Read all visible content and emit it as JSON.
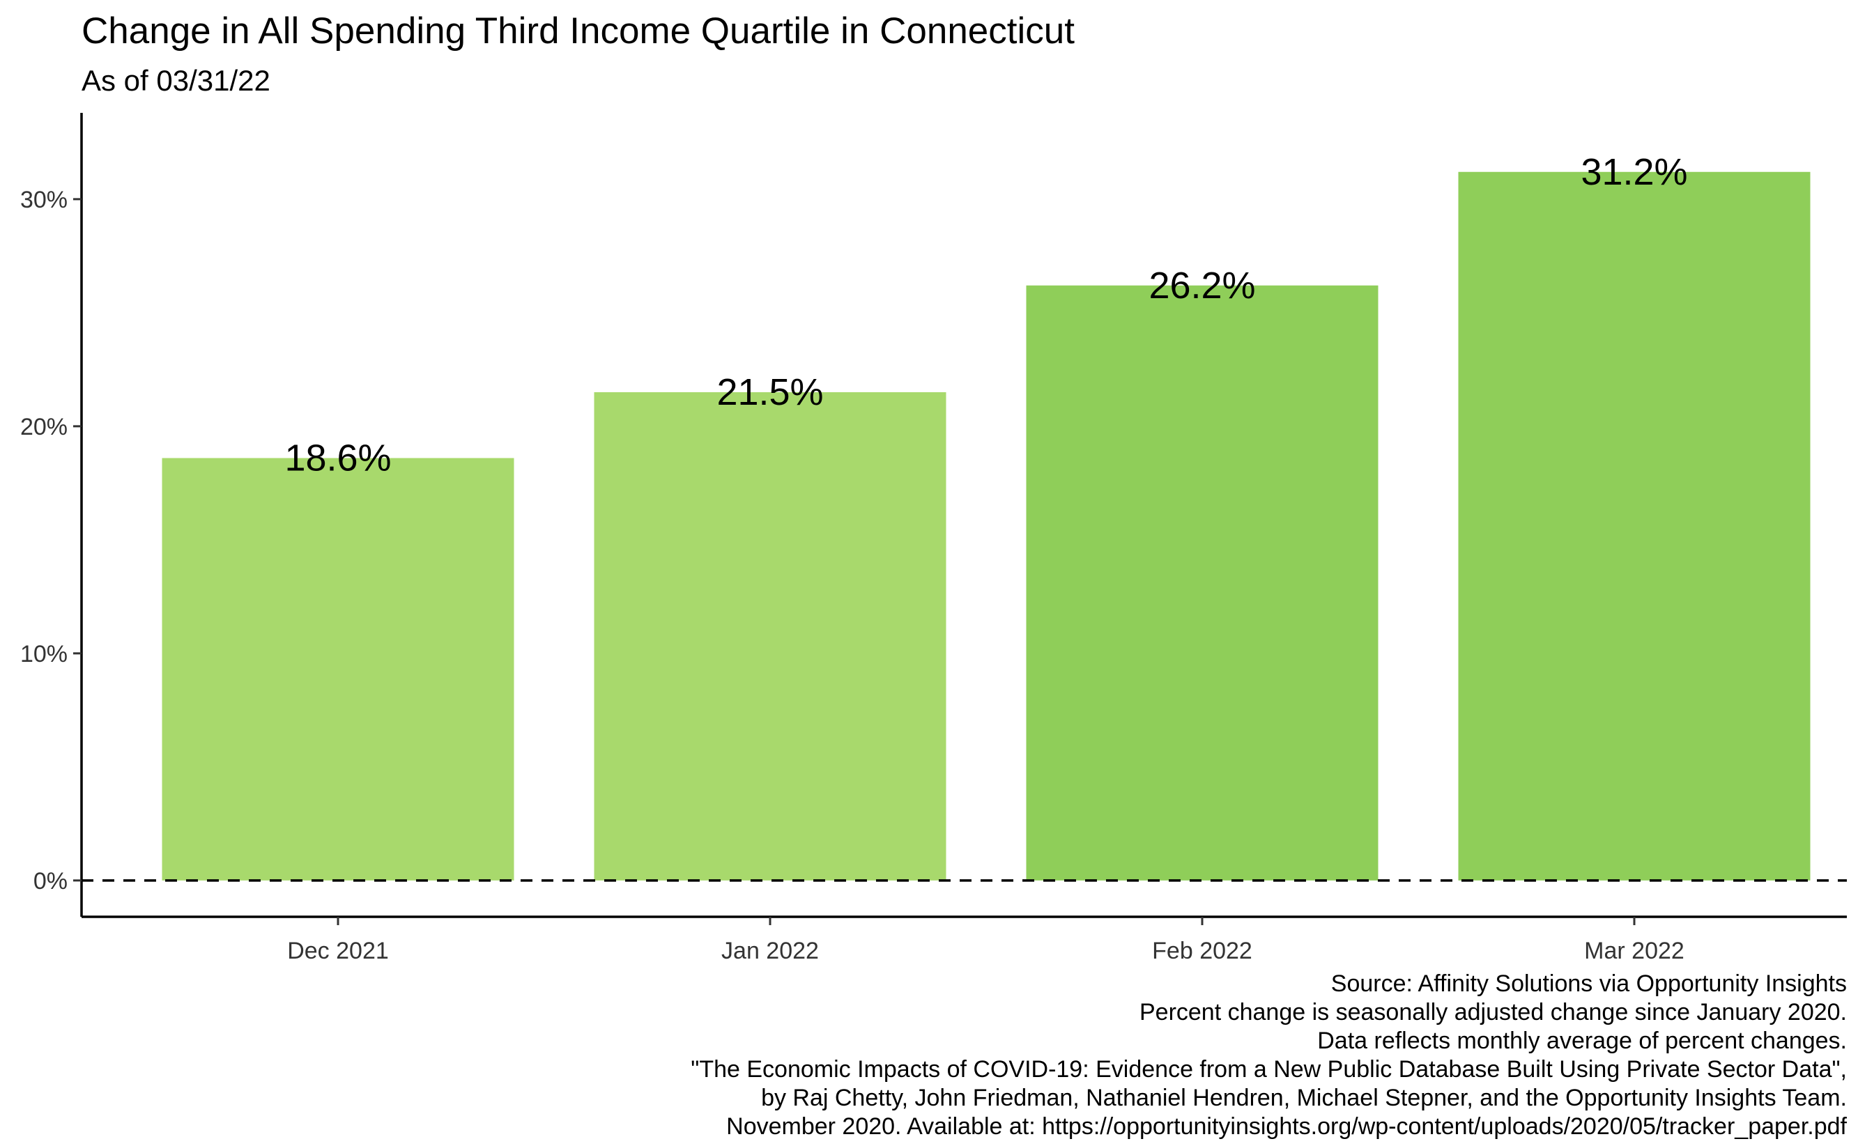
{
  "chart_data": {
    "type": "bar",
    "title": "Change in All Spending Third Income Quartile in Connecticut",
    "subtitle": "As of 03/31/22",
    "xlabel": "",
    "ylabel": "",
    "categories": [
      "Dec 2021",
      "Jan 2022",
      "Feb 2022",
      "Mar 2022"
    ],
    "values": [
      18.6,
      21.5,
      26.2,
      31.2
    ],
    "value_labels": [
      "18.6%",
      "21.5%",
      "26.2%",
      "31.2%"
    ],
    "bar_colors": [
      "#a8d96c",
      "#a8d96c",
      "#8fce59",
      "#8fce59"
    ],
    "ylim": [
      -1.6,
      33.8
    ],
    "yticks": [
      0,
      10,
      20,
      30
    ],
    "ytick_labels": [
      "0%",
      "10%",
      "20%",
      "30%"
    ],
    "reference_line": {
      "y": 0,
      "style": "dashed"
    },
    "grid": false,
    "legend": "none",
    "caption": [
      "Source: Affinity Solutions via Opportunity Insights",
      "Percent change is seasonally adjusted change since January 2020.",
      "Data reflects monthly average of percent changes.",
      "\"The Economic Impacts of COVID-19: Evidence from a New Public Database Built Using Private Sector Data\",",
      "by Raj Chetty, John Friedman, Nathaniel Hendren, Michael Stepner, and the Opportunity Insights Team.",
      "November 2020. Available at: https://opportunityinsights.org/wp-content/uploads/2020/05/tracker_paper.pdf"
    ]
  }
}
